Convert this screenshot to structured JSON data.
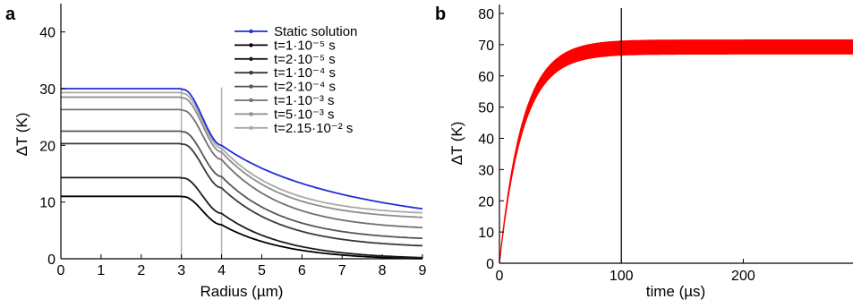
{
  "chart_data": [
    {
      "type": "line",
      "panel_label": "a",
      "xlabel": "Radius (µm)",
      "ylabel": "ΔT (K)",
      "xlim": [
        0,
        9
      ],
      "ylim": [
        0,
        45
      ],
      "x_ticks": [
        "0",
        "1",
        "2",
        "3",
        "4",
        "5",
        "6",
        "7",
        "8",
        "9"
      ],
      "y_ticks": [
        "0",
        "10",
        "20",
        "30",
        "40"
      ],
      "legend_position": "top-right",
      "vertical_markers": [
        3,
        4
      ],
      "series": [
        {
          "name": "Static solution",
          "color": "#1f2fd6",
          "plateau": 30.0,
          "at4": 20.0,
          "at9": 8.8
        },
        {
          "name": "t=1·10⁻⁵ s",
          "color": "#000000",
          "plateau": 11.0,
          "at4": 6.0,
          "at9": 0.0
        },
        {
          "name": "t=2·10⁻⁵ s",
          "color": "#1c1c1c",
          "plateau": 14.3,
          "at4": 8.0,
          "at9": 0.2
        },
        {
          "name": "t=1·10⁻⁴ s",
          "color": "#383838",
          "plateau": 20.3,
          "at4": 12.5,
          "at9": 2.3
        },
        {
          "name": "t=2·10⁻⁴ s",
          "color": "#555555",
          "plateau": 22.5,
          "at4": 14.5,
          "at9": 3.6
        },
        {
          "name": "t=1·10⁻³ s",
          "color": "#707070",
          "plateau": 26.3,
          "at4": 17.5,
          "at9": 5.5
        },
        {
          "name": "t=5·10⁻³ s",
          "color": "#8c8c8c",
          "plateau": 28.5,
          "at4": 18.8,
          "at9": 7.3
        },
        {
          "name": "t=2.15·10⁻² s",
          "color": "#a8a8a8",
          "plateau": 29.3,
          "at4": 19.5,
          "at9": 8.1
        }
      ]
    },
    {
      "type": "line",
      "panel_label": "b",
      "xlabel": "time (µs)",
      "ylabel": "ΔT (K)",
      "xlim": [
        0,
        290
      ],
      "ylim": [
        0,
        80
      ],
      "x_ticks": [
        "0",
        "100",
        "200"
      ],
      "x_tick_values": [
        0,
        100,
        200
      ],
      "y_ticks": [
        "0",
        "10",
        "20",
        "30",
        "40",
        "50",
        "60",
        "70",
        "80"
      ],
      "vertical_marker": 100,
      "series": [
        {
          "name": "",
          "color": "#ff0000",
          "steady_state_upper": 71.5,
          "steady_state_lower": 67.0
        }
      ]
    }
  ]
}
